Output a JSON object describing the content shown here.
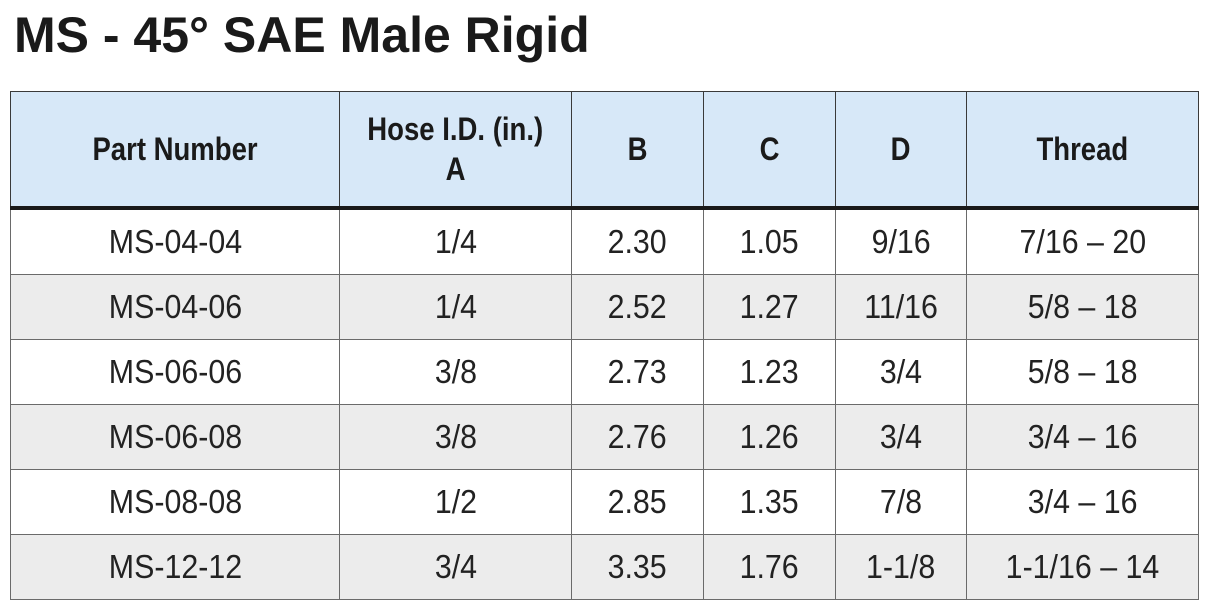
{
  "title": "MS - 45° SAE Male Rigid",
  "table": {
    "headers": [
      {
        "line1": "Part Number",
        "line2": ""
      },
      {
        "line1": "Hose I.D. (in.)",
        "line2": "A"
      },
      {
        "line1": "B",
        "line2": ""
      },
      {
        "line1": "C",
        "line2": ""
      },
      {
        "line1": "D",
        "line2": ""
      },
      {
        "line1": "Thread",
        "line2": ""
      }
    ],
    "rows": [
      [
        "MS-04-04",
        "1/4",
        "2.30",
        "1.05",
        "9/16",
        "7/16 – 20"
      ],
      [
        "MS-04-06",
        "1/4",
        "2.52",
        "1.27",
        "11/16",
        "5/8 – 18"
      ],
      [
        "MS-06-06",
        "3/8",
        "2.73",
        "1.23",
        "3/4",
        "5/8 – 18"
      ],
      [
        "MS-06-08",
        "3/8",
        "2.76",
        "1.26",
        "3/4",
        "3/4 – 16"
      ],
      [
        "MS-08-08",
        "1/2",
        "2.85",
        "1.35",
        "7/8",
        "3/4 – 16"
      ],
      [
        "MS-12-12",
        "3/4",
        "3.35",
        "1.76",
        "1-1/8",
        "1-1/16 – 14"
      ]
    ]
  }
}
